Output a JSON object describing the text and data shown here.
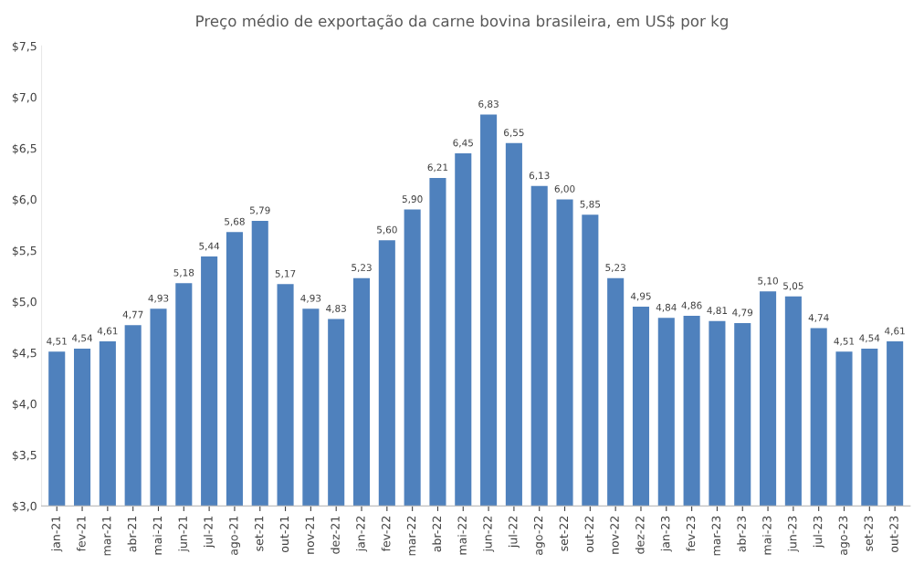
{
  "chart_data": {
    "type": "bar",
    "title": "Preço médio de exportação da carne bovina brasileira, em US$ por kg",
    "categories": [
      "jan-21",
      "fev-21",
      "mar-21",
      "abr-21",
      "mai-21",
      "jun-21",
      "jul-21",
      "ago-21",
      "set-21",
      "out-21",
      "nov-21",
      "dez-21",
      "jan-22",
      "fev-22",
      "mar-22",
      "abr-22",
      "mai-22",
      "jun-22",
      "jul-22",
      "ago-22",
      "set-22",
      "out-22",
      "nov-22",
      "dez-22",
      "jan-23",
      "fev-23",
      "mar-23",
      "abr-23",
      "mai-23",
      "jun-23",
      "jul-23",
      "ago-23",
      "set-23",
      "out-23"
    ],
    "values": [
      4.51,
      4.54,
      4.61,
      4.77,
      4.93,
      5.18,
      5.44,
      5.68,
      5.79,
      5.17,
      4.93,
      4.83,
      5.23,
      5.6,
      5.9,
      6.21,
      6.45,
      6.83,
      6.55,
      6.13,
      6.0,
      5.85,
      5.23,
      4.95,
      4.84,
      4.86,
      4.81,
      4.79,
      5.1,
      5.05,
      4.74,
      4.51,
      4.54,
      4.61
    ],
    "value_labels": [
      "4,51",
      "4,54",
      "4,61",
      "4,77",
      "4,93",
      "5,18",
      "5,44",
      "5,68",
      "5,79",
      "5,17",
      "4,93",
      "4,83",
      "5,23",
      "5,60",
      "5,90",
      "6,21",
      "6,45",
      "6,83",
      "6,55",
      "6,13",
      "6,00",
      "5,85",
      "5,23",
      "4,95",
      "4,84",
      "4,86",
      "4,81",
      "4,79",
      "5,10",
      "5,05",
      "4,74",
      "4,51",
      "4,54",
      "4,61"
    ],
    "color": "#4f81bd",
    "ylim": [
      3.0,
      7.5
    ],
    "yticks": [
      {
        "value": 3.0,
        "label": "$3,0"
      },
      {
        "value": 3.5,
        "label": "$3,5"
      },
      {
        "value": 4.0,
        "label": "$4,0"
      },
      {
        "value": 4.5,
        "label": "$4,5"
      },
      {
        "value": 5.0,
        "label": "$5,0"
      },
      {
        "value": 5.5,
        "label": "$5,5"
      },
      {
        "value": 6.0,
        "label": "$6,0"
      },
      {
        "value": 6.5,
        "label": "$6,5"
      },
      {
        "value": 7.0,
        "label": "$7,0"
      },
      {
        "value": 7.5,
        "label": "$7,5"
      }
    ],
    "grid": false,
    "legend": false
  }
}
